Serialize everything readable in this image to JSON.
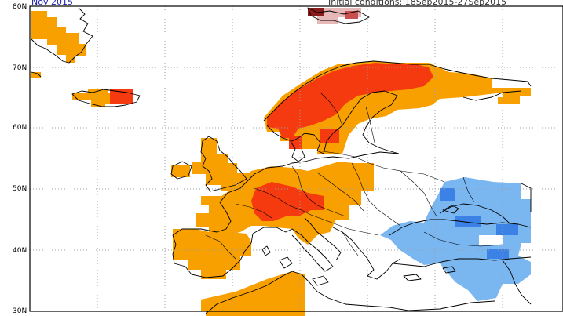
{
  "header": {
    "title": "Nov 2015",
    "conditions": "Initial conditions: 18Sep2015-27Sep2015"
  },
  "axis": {
    "lat_labels": [
      "80N",
      "70N",
      "60N",
      "50N",
      "40N",
      "30N"
    ]
  },
  "colors": {
    "strong_warm": "#f53a10",
    "warm": "#f7a000",
    "very_strong_warm": "#8b1a1a",
    "cool": "#7ab6f0",
    "strong_cool": "#3c82e6",
    "land_outline": "#000000",
    "grid": "#9aa0a6",
    "title": "#1a1ab0"
  }
}
